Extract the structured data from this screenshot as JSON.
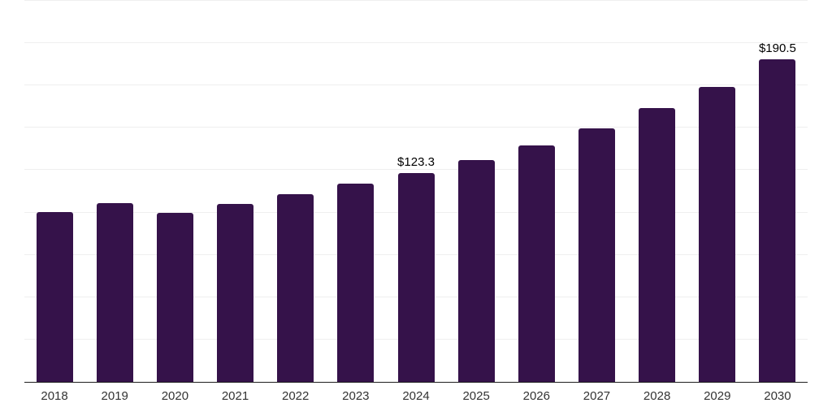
{
  "chart_data": {
    "type": "bar",
    "title": "",
    "xlabel": "",
    "ylabel": "",
    "categories": [
      "2018",
      "2019",
      "2020",
      "2021",
      "2022",
      "2023",
      "2024",
      "2025",
      "2026",
      "2027",
      "2028",
      "2029",
      "2030"
    ],
    "values": [
      100.2,
      105.7,
      99.6,
      105.2,
      110.8,
      117.0,
      123.3,
      131.0,
      139.5,
      149.7,
      161.5,
      174.2,
      190.5
    ],
    "value_labels": [
      "",
      "",
      "",
      "",
      "",
      "",
      "$123.3",
      "",
      "",
      "",
      "",
      "",
      "$190.5"
    ],
    "ylim": [
      0,
      225
    ],
    "grid_step": 25,
    "grid": true,
    "legend": false,
    "colors": {
      "bar": "#35124a",
      "axis_line": "#1f1f1f",
      "gridline": "#efefef",
      "tick_label": "#333333",
      "value_label": "#000000",
      "background": "#ffffff"
    }
  }
}
